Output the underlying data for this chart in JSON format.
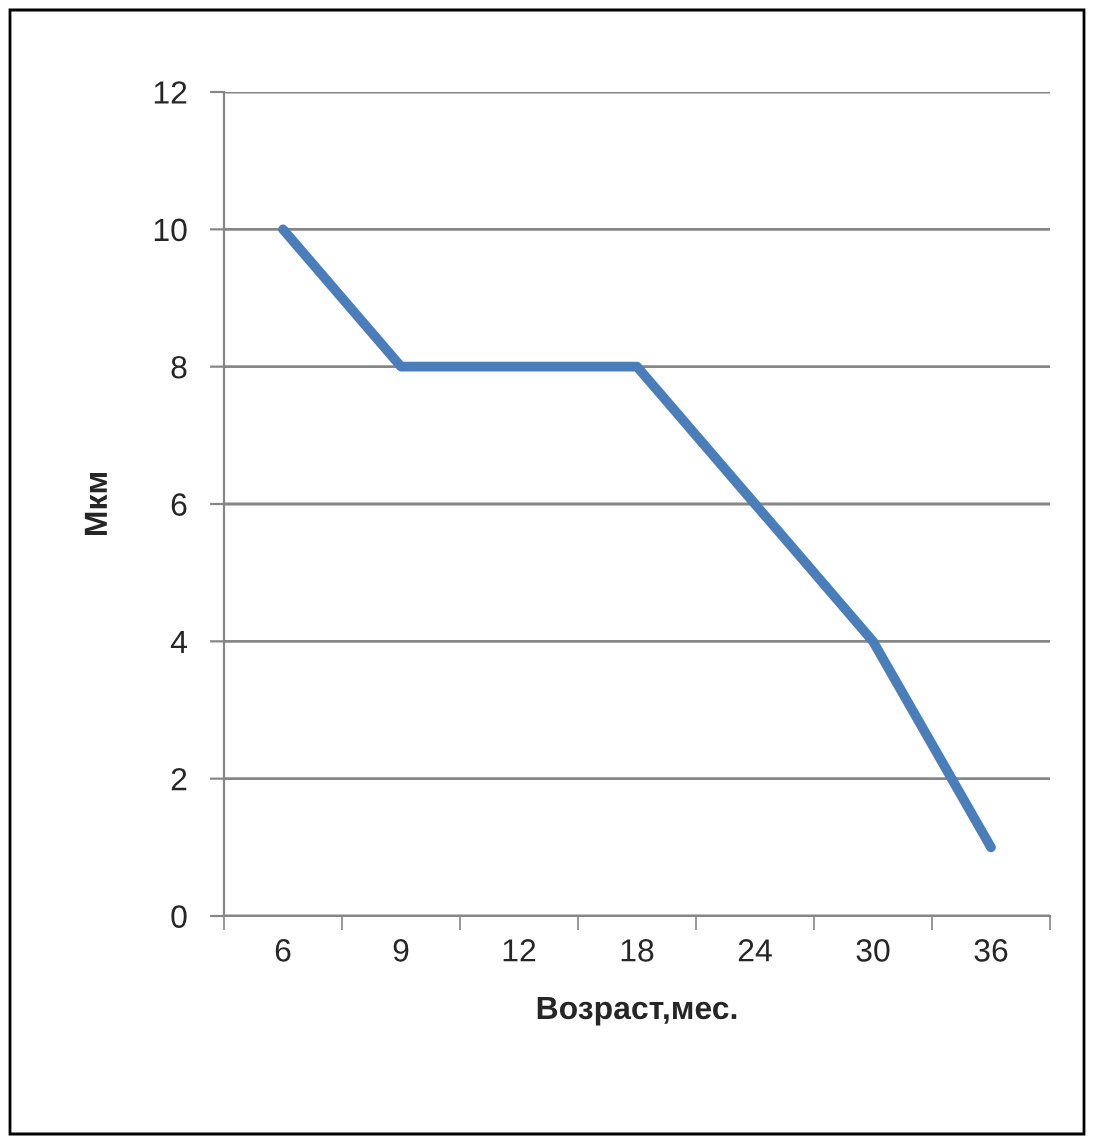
{
  "chart_data": {
    "type": "line",
    "xlabel": "Возраст,мес.",
    "ylabel": "Мкм",
    "categories": [
      "6",
      "9",
      "12",
      "18",
      "24",
      "30",
      "36"
    ],
    "series": [
      {
        "color": "#4a7ebb",
        "values": [
          10,
          8,
          8,
          8,
          6,
          4,
          1
        ]
      }
    ],
    "ylim": [
      0,
      12
    ],
    "yticks": [
      0,
      2,
      4,
      6,
      8,
      10,
      12
    ],
    "grid": "y",
    "marker": "none",
    "line_style": "solid"
  }
}
